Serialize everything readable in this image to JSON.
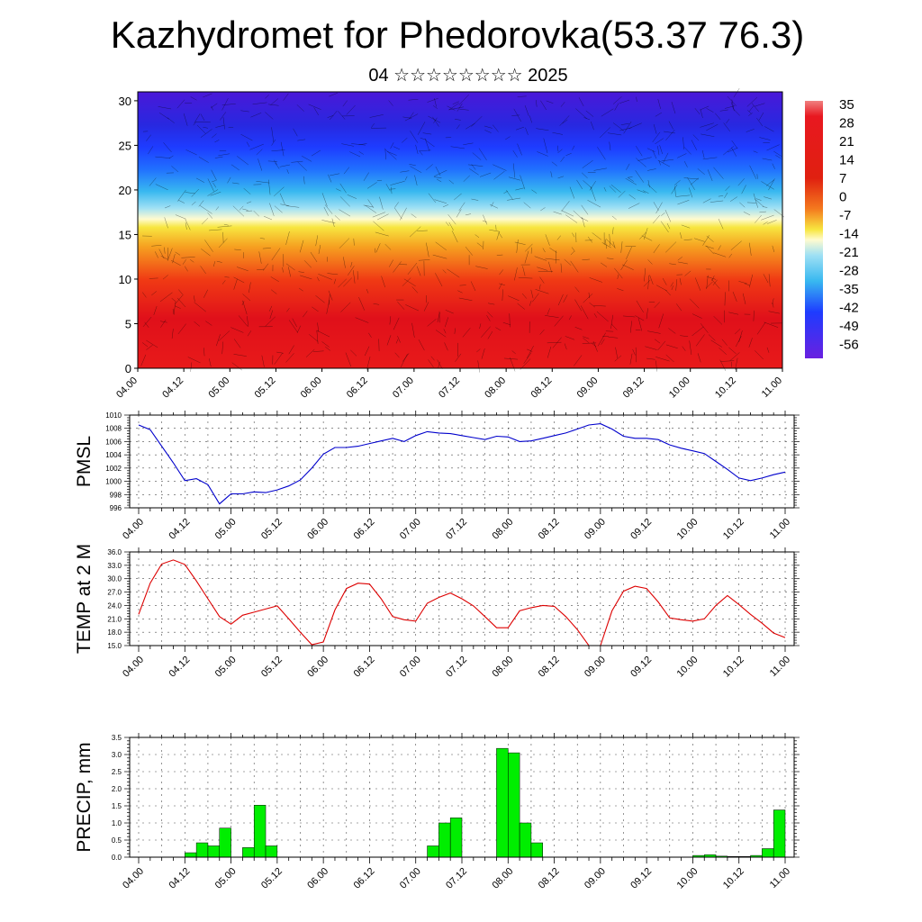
{
  "header": {
    "title": "Kazhydromet for Phedorovka(53.37 76.3)",
    "subtitle": "04 ☆☆☆☆☆☆☆☆ 2025"
  },
  "chart_data": [
    {
      "type": "heatmap",
      "name": "upper-air-cross-section",
      "title": "",
      "xlabel": "",
      "ylabel": "",
      "x_ticks": [
        "04.00",
        "04.12",
        "05.00",
        "05.12",
        "06.00",
        "06.12",
        "07.00",
        "07.12",
        "08.00",
        "08.12",
        "09.00",
        "09.12",
        "10.00",
        "10.12",
        "11.00"
      ],
      "ylim": [
        0,
        31
      ],
      "y_ticks": [
        0,
        5,
        10,
        15,
        20,
        25,
        30
      ],
      "colorbar_labels": [
        "35",
        "28",
        "21",
        "14",
        "7",
        "0",
        "-7",
        "-14",
        "-21",
        "-28",
        "-35",
        "-42",
        "-49",
        "-56"
      ],
      "colors": {
        "warm": "#e0101a",
        "orange": "#f47a1e",
        "yellow": "#f7e640",
        "light": "#fffbd0",
        "cyan": "#38b8f0",
        "blue": "#1e3cff",
        "deep": "#4a18d8"
      },
      "grid": false
    },
    {
      "type": "line",
      "name": "pmsl",
      "ylabel": "PMSL",
      "ylim": [
        996,
        1010
      ],
      "y_ticks": [
        996,
        998,
        1000,
        1002,
        1004,
        1006,
        1008,
        1010
      ],
      "x_ticks": [
        "04.00",
        "04.12",
        "05.00",
        "05.12",
        "06.00",
        "06.12",
        "07.00",
        "07.12",
        "08.00",
        "08.12",
        "09.00",
        "09.12",
        "10.00",
        "10.12",
        "11.00"
      ],
      "x": [
        0,
        3,
        6,
        9,
        12,
        15,
        18,
        21,
        24,
        27,
        30,
        33,
        36,
        39,
        42,
        45,
        48,
        51,
        54,
        57,
        60,
        63,
        66,
        69,
        72,
        75,
        78,
        81,
        84,
        87,
        90,
        93,
        96,
        99,
        102,
        105,
        108,
        111,
        114,
        117,
        120,
        123,
        126,
        129,
        132,
        135,
        138,
        141,
        144,
        147,
        150,
        153,
        156,
        159,
        162,
        165,
        168
      ],
      "values": [
        1008.5,
        1007.8,
        1005.3,
        1002.8,
        1000.1,
        1000.4,
        999.5,
        996.6,
        998.1,
        998.1,
        998.4,
        998.3,
        998.7,
        999.3,
        1000.2,
        1002.0,
        1004.1,
        1005.1,
        1005.1,
        1005.3,
        1005.7,
        1006.1,
        1006.5,
        1006.0,
        1006.9,
        1007.5,
        1007.3,
        1007.2,
        1006.9,
        1006.6,
        1006.3,
        1006.8,
        1006.7,
        1006.0,
        1006.1,
        1006.5,
        1006.9,
        1007.3,
        1007.9,
        1008.5,
        1008.7,
        1007.9,
        1006.8,
        1006.5,
        1006.5,
        1006.3,
        1005.5,
        1005.0,
        1004.6,
        1004.2,
        1003.0,
        1001.8,
        1000.5,
        1000.1,
        1000.5,
        1001.0,
        1001.4
      ],
      "grid": true,
      "colors": {
        "line": "#0000cc"
      }
    },
    {
      "type": "line",
      "name": "temp-2m",
      "ylabel": "TEMP at 2 M",
      "ylim": [
        15.0,
        36.0
      ],
      "y_ticks": [
        "15.0",
        "18.0",
        "21.0",
        "24.0",
        "27.0",
        "30.0",
        "33.0",
        "36.0"
      ],
      "x_ticks": [
        "04.00",
        "04.12",
        "05.00",
        "05.12",
        "06.00",
        "06.12",
        "07.00",
        "07.12",
        "08.00",
        "08.12",
        "09.00",
        "09.12",
        "10.00",
        "10.12",
        "11.00"
      ],
      "x": [
        0,
        3,
        6,
        9,
        12,
        15,
        18,
        21,
        24,
        27,
        30,
        33,
        36,
        39,
        42,
        45,
        48,
        51,
        54,
        57,
        60,
        63,
        66,
        69,
        72,
        75,
        78,
        81,
        84,
        87,
        90,
        93,
        96,
        99,
        102,
        105,
        108,
        111,
        114,
        117,
        120,
        123,
        126,
        129,
        132,
        135,
        138,
        141,
        144,
        147,
        150,
        153,
        156,
        159,
        162,
        165,
        168
      ],
      "values": [
        22.0,
        29.0,
        33.3,
        34.2,
        33.2,
        29.5,
        25.5,
        21.5,
        19.8,
        21.8,
        22.5,
        23.2,
        23.9,
        21.0,
        18.0,
        15.2,
        15.8,
        23.0,
        27.8,
        29.0,
        28.8,
        25.5,
        21.5,
        20.8,
        20.5,
        24.5,
        25.8,
        26.8,
        25.5,
        23.9,
        21.5,
        19.0,
        19.0,
        22.8,
        23.5,
        24.0,
        23.8,
        21.5,
        18.6,
        15.0,
        15.0,
        22.8,
        27.2,
        28.3,
        27.8,
        24.8,
        21.2,
        20.8,
        20.5,
        21.0,
        24.0,
        26.2,
        24.2,
        22.0,
        20.0,
        17.8,
        16.8
      ],
      "grid": true,
      "colors": {
        "line": "#dd0000"
      }
    },
    {
      "type": "bar",
      "name": "precip",
      "ylabel": "PRECIP, mm",
      "ylim": [
        0,
        3.5
      ],
      "y_ticks": [
        "0.0",
        "0.5",
        "1.0",
        "1.5",
        "2.0",
        "2.5",
        "3.0",
        "3.5"
      ],
      "x_ticks": [
        "04.00",
        "04.12",
        "05.00",
        "05.12",
        "06.00",
        "06.12",
        "07.00",
        "07.12",
        "08.00",
        "08.12",
        "09.00",
        "09.12",
        "10.00",
        "10.12",
        "11.00"
      ],
      "x": [
        15,
        18,
        21,
        24,
        27,
        30,
        33,
        36,
        78,
        81,
        84,
        96,
        99,
        102,
        105,
        147,
        150,
        153,
        156,
        159,
        162,
        165,
        168
      ],
      "values": [
        0.13,
        0.42,
        0.33,
        0.85,
        0.0,
        0.28,
        1.52,
        0.33,
        0.33,
        1.0,
        1.15,
        3.18,
        3.05,
        1.0,
        0.42,
        0.05,
        0.07,
        0.03,
        0.02,
        0.02,
        0.05,
        0.25,
        1.38
      ],
      "grid": true,
      "colors": {
        "bar": "#00ee00",
        "edge": "#000000"
      }
    }
  ]
}
